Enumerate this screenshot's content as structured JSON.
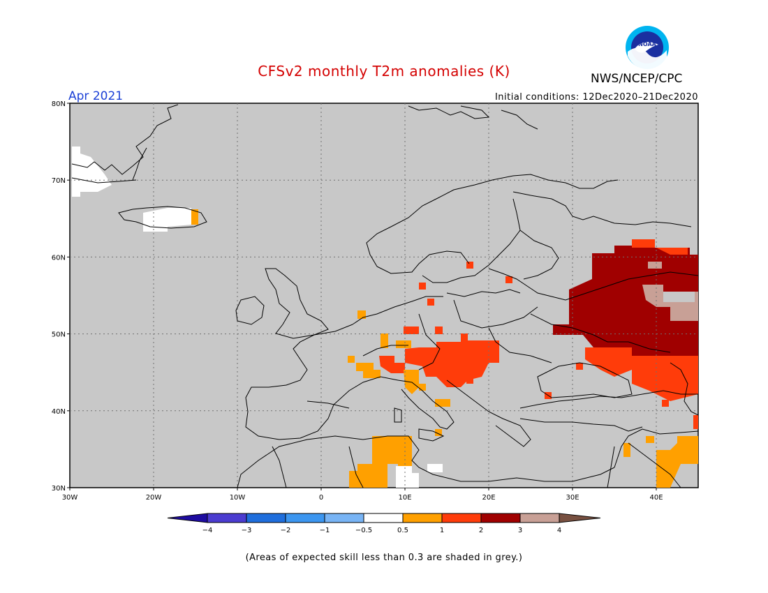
{
  "header": {
    "title": "CFSv2 monthly T2m anomalies (K)",
    "agency": "NWS/NCEP/CPC",
    "logo_text": "NOAA",
    "month_label": "Apr 2021",
    "init_conditions": "Initial conditions: 12Dec2020–21Dec2020"
  },
  "map": {
    "lon_range": [
      -30,
      45
    ],
    "lat_range": [
      30,
      80
    ],
    "lon_ticks": [
      "30W",
      "20W",
      "10W",
      "0",
      "10E",
      "20E",
      "30E",
      "40E"
    ],
    "lat_ticks": [
      "80N",
      "70N",
      "60N",
      "50N",
      "40N",
      "30N"
    ],
    "background_color": "#c8c8c8"
  },
  "colorbar": {
    "labels": [
      "−4",
      "−3",
      "−2",
      "−1",
      "−0.5",
      "0.5",
      "1",
      "2",
      "3",
      "4"
    ],
    "colors": [
      "#1e0ca0",
      "#4b3cd0",
      "#1f6edc",
      "#3c96f0",
      "#78b4f5",
      "#ffffff",
      "#ffa000",
      "#ff3c0a",
      "#a00000",
      "#c8a096",
      "#785040"
    ]
  },
  "footer": {
    "note": "(Areas of expected skill less than 0.3 are shaded in grey.)"
  }
}
